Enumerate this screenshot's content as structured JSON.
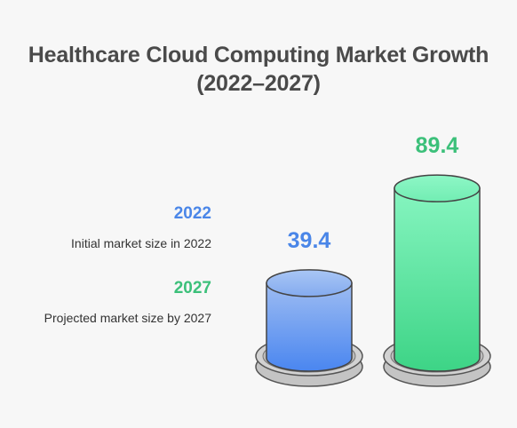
{
  "page": {
    "title_line1": "Healthcare Cloud Computing Market Growth",
    "title_line2": "(2022–2027)"
  },
  "legend": [
    {
      "year": "2022",
      "description": "Initial market size in 2022",
      "color": "#4a86e8"
    },
    {
      "year": "2027",
      "description": "Projected market size by 2027",
      "color": "#3cc07a"
    }
  ],
  "chart_data": {
    "type": "bar",
    "style": "3d-cylinder",
    "categories": [
      "2022",
      "2027"
    ],
    "values": [
      39.4,
      89.4
    ],
    "value_labels": [
      "39.4",
      "89.4"
    ],
    "title": "Healthcare Cloud Computing Market Growth (2022–2027)",
    "xlabel": "",
    "ylabel": "",
    "grid": false,
    "legend_position": "left",
    "colors": [
      "#4a86e8",
      "#3cc07a"
    ]
  }
}
